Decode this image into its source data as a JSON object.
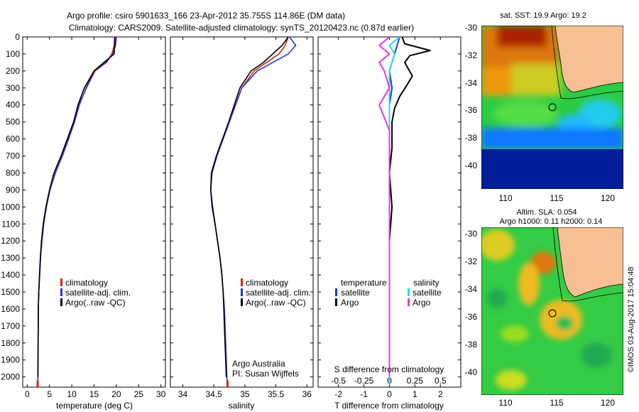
{
  "header": {
    "line1": "Argo profile: csiro 5901633_166 23-Apr-2012 35.755S 114.86E (DM data)",
    "line2": "Climatology: CARS2009. Satellite-adjusted climatology: synTS_20120423.nc (0.87d earlier)"
  },
  "colors": {
    "clim": "#dd2200",
    "sat": "#2233ee",
    "argo": "#000000",
    "sat_s": "#22ddee",
    "argo_s": "#ee33dd"
  },
  "chart_data": [
    {
      "type": "line",
      "id": "temperature",
      "xlabel": "temperature (deg C)",
      "ylabel": "",
      "xlim": [
        -1,
        31
      ],
      "ylim": [
        2060,
        0
      ],
      "xticks": [
        "0",
        "5",
        "10",
        "15",
        "20",
        "25",
        "30"
      ],
      "yticks": [
        "0",
        "100",
        "200",
        "300",
        "400",
        "500",
        "600",
        "700",
        "800",
        "900",
        "1000",
        "1100",
        "1200",
        "1300",
        "1400",
        "1500",
        "1600",
        "1700",
        "1800",
        "1900",
        "2000"
      ],
      "legend": [
        "climatology",
        "satellite-adj. clim.",
        "Argo(..raw -QC)"
      ],
      "series": [
        {
          "name": "climatology",
          "x": [
            19.6,
            19.5,
            19.0,
            17.8,
            15.2,
            13.3,
            11.6,
            10.6,
            9.2,
            7.8,
            6.3,
            5.1,
            4.3,
            3.7,
            3.3,
            3.0,
            2.8,
            2.6,
            2.5,
            2.45,
            2.4,
            2.35
          ],
          "y": [
            0,
            50,
            100,
            150,
            200,
            300,
            400,
            500,
            600,
            700,
            800,
            900,
            1000,
            1100,
            1200,
            1300,
            1400,
            1500,
            1600,
            1800,
            2000,
            2050
          ]
        },
        {
          "name": "satellite-adj. clim.",
          "x": [
            20.0,
            19.8,
            19.2,
            17.6,
            15.0,
            13.2,
            11.7,
            10.6,
            9.3,
            7.9,
            6.3,
            5.1,
            4.3,
            3.7,
            3.3,
            3.0,
            2.8,
            2.6,
            2.5,
            2.45,
            2.4,
            2.35
          ],
          "y": [
            0,
            50,
            100,
            150,
            200,
            300,
            400,
            500,
            600,
            700,
            800,
            900,
            1000,
            1100,
            1200,
            1300,
            1400,
            1500,
            1600,
            1800,
            2000,
            2050
          ]
        },
        {
          "name": "Argo(..raw -QC)",
          "x": [
            19.7,
            19.6,
            19.5,
            17.2,
            15.0,
            12.8,
            11.4,
            10.4,
            9.0,
            7.6,
            6.0,
            5.0,
            4.2,
            3.6,
            3.2,
            2.95,
            2.75,
            2.6,
            2.5,
            2.45,
            2.4
          ],
          "y": [
            0,
            50,
            100,
            150,
            200,
            300,
            400,
            500,
            600,
            700,
            800,
            900,
            1000,
            1100,
            1200,
            1300,
            1400,
            1500,
            1600,
            1800,
            2000
          ]
        }
      ]
    },
    {
      "type": "line",
      "id": "salinity",
      "xlabel": "salinity",
      "xlim": [
        33.8,
        36.1
      ],
      "ylim": [
        2060,
        0
      ],
      "xticks": [
        "34",
        "34.5",
        "35",
        "35.5",
        "36"
      ],
      "legend": [
        "climatology",
        "satellite-adj. clim.",
        "Argo(..raw -QC)"
      ],
      "annotations": [
        "Argo Australia",
        "PI: Susan Wijffels"
      ],
      "series": [
        {
          "name": "climatology",
          "x": [
            35.7,
            35.65,
            35.55,
            35.35,
            35.15,
            34.95,
            34.85,
            34.75,
            34.65,
            34.55,
            34.47,
            34.45,
            34.47,
            34.52,
            34.56,
            34.6,
            34.63,
            34.65,
            34.67,
            34.69,
            34.71,
            34.72
          ],
          "y": [
            0,
            50,
            100,
            150,
            200,
            300,
            400,
            500,
            600,
            700,
            800,
            900,
            1000,
            1100,
            1200,
            1300,
            1400,
            1500,
            1600,
            1800,
            2000,
            2050
          ]
        },
        {
          "name": "satellite-adj. clim.",
          "x": [
            35.72,
            35.82,
            35.7,
            35.45,
            35.2,
            34.95,
            34.85,
            34.75,
            34.65,
            34.55,
            34.47,
            34.45,
            34.47,
            34.52,
            34.56,
            34.6,
            34.63,
            34.65,
            34.67,
            34.69,
            34.71,
            34.72
          ],
          "y": [
            0,
            50,
            100,
            150,
            200,
            300,
            400,
            500,
            600,
            700,
            800,
            900,
            1000,
            1100,
            1200,
            1300,
            1400,
            1500,
            1600,
            1800,
            2000,
            2050
          ]
        },
        {
          "name": "Argo(..raw -QC)",
          "x": [
            35.7,
            35.6,
            35.45,
            35.3,
            35.1,
            34.92,
            34.83,
            34.74,
            34.64,
            34.54,
            34.46,
            34.45,
            34.48,
            34.52,
            34.56,
            34.6,
            34.63,
            34.65,
            34.66,
            34.68,
            34.7
          ],
          "y": [
            0,
            50,
            100,
            150,
            200,
            300,
            400,
            500,
            600,
            700,
            800,
            900,
            1000,
            1100,
            1200,
            1300,
            1400,
            1500,
            1600,
            1800,
            2000
          ]
        }
      ]
    },
    {
      "type": "line",
      "id": "difference",
      "xlabel": "T difference from climatology",
      "xlabel_top": "S difference from climatology",
      "xlim": [
        -2.8,
        2.8
      ],
      "ylim": [
        2060,
        0
      ],
      "xticks": [
        "-2",
        "-1",
        "0",
        "1",
        "2"
      ],
      "sticks": [
        "-0.5",
        "-0.25",
        "0",
        "0.25",
        "0.5"
      ],
      "legend_titles": [
        "temperature",
        "salinity"
      ],
      "legend": [
        "satellite",
        "Argo",
        "satellite",
        "Argo"
      ],
      "series": [
        {
          "name": "T satellite",
          "x": [
            0.4,
            0.3,
            0.2,
            0.0,
            0.1,
            0.0,
            0.0,
            0.0,
            0.0,
            0.0,
            0.0,
            0.0,
            0.0,
            0.0
          ],
          "y": [
            0,
            50,
            100,
            200,
            300,
            400,
            500,
            600,
            800,
            1000,
            1200,
            1500,
            1800,
            2050
          ]
        },
        {
          "name": "T Argo",
          "x": [
            0.5,
            0.6,
            1.6,
            0.8,
            0.6,
            0.9,
            0.7,
            0.4,
            0.2,
            0.1,
            0.1,
            0.0,
            0.1,
            0.0,
            0.0,
            0.0,
            0.0
          ],
          "y": [
            0,
            40,
            80,
            110,
            150,
            230,
            280,
            350,
            420,
            500,
            650,
            800,
            1000,
            1200,
            1500,
            1800,
            2000
          ]
        },
        {
          "name": "S satellite",
          "x": [
            0.1,
            0.0,
            0.05,
            0.0,
            0.0,
            0.0,
            0.0,
            0.0,
            0.0,
            0.0,
            0.0
          ],
          "y": [
            0,
            50,
            100,
            200,
            300,
            400,
            600,
            900,
            1200,
            1600,
            2050
          ]
        },
        {
          "name": "S Argo",
          "x": [
            0.0,
            -0.1,
            0.0,
            -0.1,
            -0.05,
            0.0,
            -0.1,
            0.0,
            0.0,
            0.0,
            0.0,
            0.0
          ],
          "y": [
            0,
            50,
            100,
            150,
            200,
            300,
            400,
            550,
            700,
            1000,
            1500,
            2000
          ]
        }
      ]
    }
  ],
  "maps": {
    "sst_title": "sat. SST: 19.9 Argo: 19.2",
    "sla_title1": "Altim. SLA: 0.054",
    "sla_title2": "Argo h1000: 0.11 h2000: 0.14",
    "lat_ticks": [
      "-30",
      "-32",
      "-34",
      "-36",
      "-38",
      "-40"
    ],
    "lon_ticks": [
      "110",
      "115",
      "120"
    ],
    "marker": {
      "lon": 114.86,
      "lat": -35.755
    }
  },
  "credit": "©IMOS 03-Aug-2017 15:04:48"
}
